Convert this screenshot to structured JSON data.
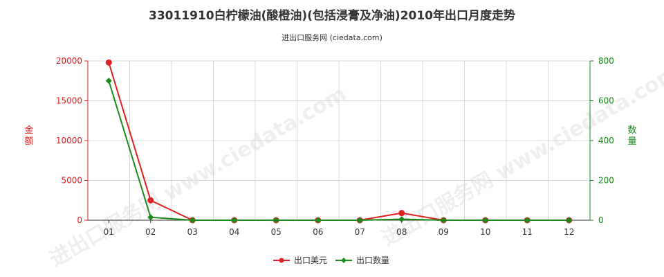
{
  "title": "33011910白柠檬油(酸橙油)(包括浸膏及净油)2010年出口月度走势",
  "subtitle": "进出口服务网 (ciedata.com)",
  "watermark": "进出口服务网 www.ciedata.com",
  "colors": {
    "left_axis": "#e02020",
    "right_axis": "#1a8a1a",
    "grid": "#d8d8d8"
  },
  "chart_data": {
    "type": "line",
    "categories": [
      "01",
      "02",
      "03",
      "04",
      "05",
      "06",
      "07",
      "08",
      "09",
      "10",
      "11",
      "12"
    ],
    "left_axis": {
      "label": "金额",
      "ylim": [
        0,
        20000
      ],
      "ticks": [
        "0",
        "5000",
        "10000",
        "15000",
        "20000"
      ]
    },
    "right_axis": {
      "label": "数量",
      "ylim": [
        0,
        800
      ],
      "ticks": [
        "0",
        "200",
        "400",
        "600",
        "800"
      ]
    },
    "series": [
      {
        "name": "出口美元",
        "axis": "left",
        "color": "#e02020",
        "marker": "circle",
        "values": [
          19800,
          2500,
          0,
          0,
          0,
          0,
          0,
          900,
          0,
          0,
          0,
          0
        ]
      },
      {
        "name": "出口数量",
        "axis": "right",
        "color": "#1a8a1a",
        "marker": "diamond",
        "values": [
          700,
          15,
          0,
          0,
          0,
          0,
          0,
          5,
          0,
          0,
          0,
          0
        ]
      }
    ],
    "grid": true,
    "legend": "bottom"
  }
}
